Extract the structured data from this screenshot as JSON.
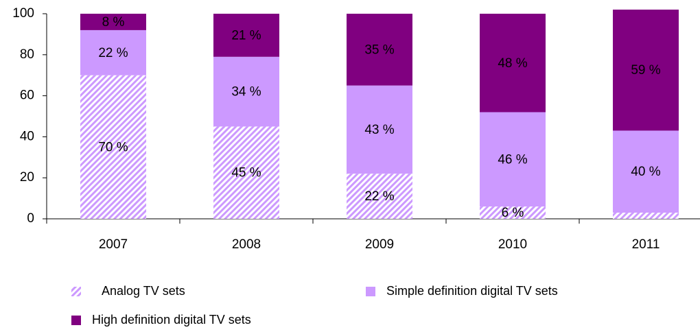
{
  "chart_data": {
    "type": "stacked_bar",
    "categories": [
      "2007",
      "2008",
      "2009",
      "2010",
      "2011"
    ],
    "series": [
      {
        "name": "Analog TV sets",
        "color": "#cc99ff",
        "pattern": "hatch",
        "label_color": "#000000",
        "values": [
          70,
          45,
          22,
          6,
          3
        ],
        "value_labels": [
          "70 %",
          "45 %",
          "22 %",
          "6 %",
          null
        ]
      },
      {
        "name": "Simple definition digital TV sets",
        "color": "#cc99ff",
        "label_color": "#ffffff",
        "values": [
          22,
          34,
          43,
          46,
          40
        ],
        "value_labels": [
          "22 %",
          "34 %",
          "43 %",
          "46 %",
          "40 %"
        ]
      },
      {
        "name": "High definition digital TV sets",
        "color": "#800080",
        "label_color": "#ffffff",
        "values": [
          8,
          21,
          35,
          48,
          59
        ],
        "value_labels": [
          "8 %",
          "21 %",
          "35 %",
          "48 %",
          "59 %"
        ]
      }
    ],
    "ylim": [
      0,
      100
    ],
    "yticks": [
      0,
      20,
      40,
      60,
      80,
      100
    ],
    "grid": false
  }
}
